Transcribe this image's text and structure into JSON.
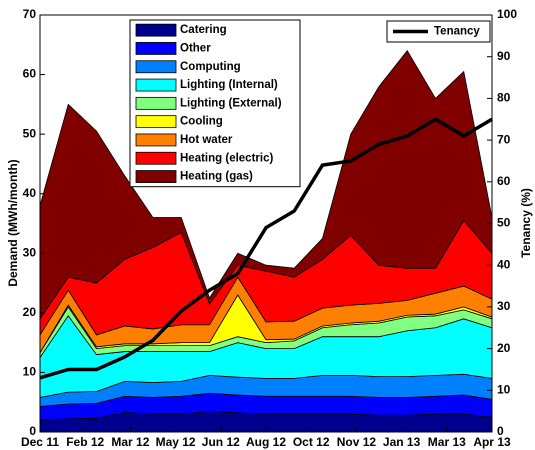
{
  "chart_data": {
    "type": "stacked-area",
    "ylabel": "Demand (MWh/month)",
    "y2label": "Tenancy (%)",
    "x": [
      0,
      1,
      2,
      3,
      4,
      5,
      6,
      7,
      8,
      9,
      10,
      11,
      12,
      13,
      14,
      15,
      16
    ],
    "xlim": [
      0,
      16
    ],
    "xticks": [
      {
        "value": 0,
        "label": "Dec 11"
      },
      {
        "value": 1.6,
        "label": "Feb 12"
      },
      {
        "value": 3.2,
        "label": "Mar 12"
      },
      {
        "value": 4.8,
        "label": "May 12"
      },
      {
        "value": 6.4,
        "label": "Jun 12"
      },
      {
        "value": 8,
        "label": "Aug 12"
      },
      {
        "value": 9.6,
        "label": "Oct 12"
      },
      {
        "value": 11.2,
        "label": "Nov 12"
      },
      {
        "value": 12.8,
        "label": "Jan 13"
      },
      {
        "value": 14.4,
        "label": "Mar 13"
      },
      {
        "value": 16,
        "label": "Apr 13"
      }
    ],
    "ylim": [
      0,
      70
    ],
    "yticks": [
      0,
      10,
      20,
      30,
      40,
      50,
      60,
      70
    ],
    "y2lim": [
      0,
      100
    ],
    "y2ticks": [
      0,
      10,
      20,
      30,
      40,
      50,
      60,
      70,
      80,
      90,
      100
    ],
    "grid": false,
    "series": [
      {
        "name": "Catering",
        "color": "#00008f",
        "values": [
          2,
          2.2,
          2.3,
          3.3,
          3,
          3,
          3.5,
          3.2,
          3,
          3,
          3,
          3,
          2.8,
          2.8,
          3,
          3,
          2.5
        ]
      },
      {
        "name": "Other",
        "color": "#0000ff",
        "values": [
          2.3,
          2.5,
          2.5,
          2.7,
          2.8,
          3,
          3,
          3,
          3,
          3,
          3,
          3,
          3,
          3,
          3,
          3.2,
          3
        ]
      },
      {
        "name": "Computing",
        "color": "#0080ff",
        "values": [
          1.5,
          2,
          2,
          2.5,
          2.5,
          2.5,
          3,
          3,
          3,
          3,
          3.5,
          3.5,
          3.5,
          3.5,
          3.5,
          3.5,
          3.5
        ]
      },
      {
        "name": "Lighting (Internal)",
        "color": "#00ffff",
        "values": [
          6.7,
          12.8,
          6.2,
          5,
          5.2,
          5,
          4,
          5.8,
          5,
          5,
          6.5,
          6.5,
          6.7,
          7.7,
          8,
          9.3,
          8.5
        ]
      },
      {
        "name": "Lighting (External)",
        "color": "#80ff80",
        "values": [
          0.8,
          1.5,
          1,
          1,
          1,
          1,
          1,
          1,
          1,
          1.3,
          1.5,
          2,
          2.3,
          2.3,
          2,
          1.5,
          1.5
        ]
      },
      {
        "name": "Cooling",
        "color": "#ffff00",
        "values": [
          0,
          0.3,
          0.3,
          0.3,
          0.3,
          0.5,
          0.5,
          7,
          0.5,
          0.3,
          0.3,
          0.3,
          0.3,
          0.3,
          0.3,
          0.5,
          0.3
        ]
      },
      {
        "name": "Hot water",
        "color": "#ff8000",
        "values": [
          3,
          2.5,
          2,
          3,
          2.5,
          3,
          3,
          3,
          3,
          3,
          3,
          3,
          3,
          2.5,
          3.5,
          3.5,
          3
        ]
      },
      {
        "name": "Heating (electric)",
        "color": "#ff0000",
        "values": [
          2.7,
          2.2,
          8.7,
          11.2,
          13.7,
          15.5,
          3.5,
          2,
          8.5,
          7.4,
          8.2,
          11.7,
          6.4,
          5.4,
          4.2,
          11,
          7.7
        ]
      },
      {
        "name": "Heating (gas)",
        "color": "#800000",
        "values": [
          19,
          29,
          25.5,
          14,
          5,
          2.5,
          1,
          2,
          1,
          1.5,
          3.5,
          17,
          30,
          36.5,
          28.5,
          25,
          6
        ]
      }
    ],
    "line_series": [
      {
        "name": "Tenancy",
        "color": "#000000",
        "axis": "y2",
        "values": [
          13,
          15,
          15,
          18,
          22,
          29,
          34,
          38,
          49,
          53,
          64,
          65,
          69,
          71,
          75,
          71,
          75
        ]
      }
    ]
  }
}
